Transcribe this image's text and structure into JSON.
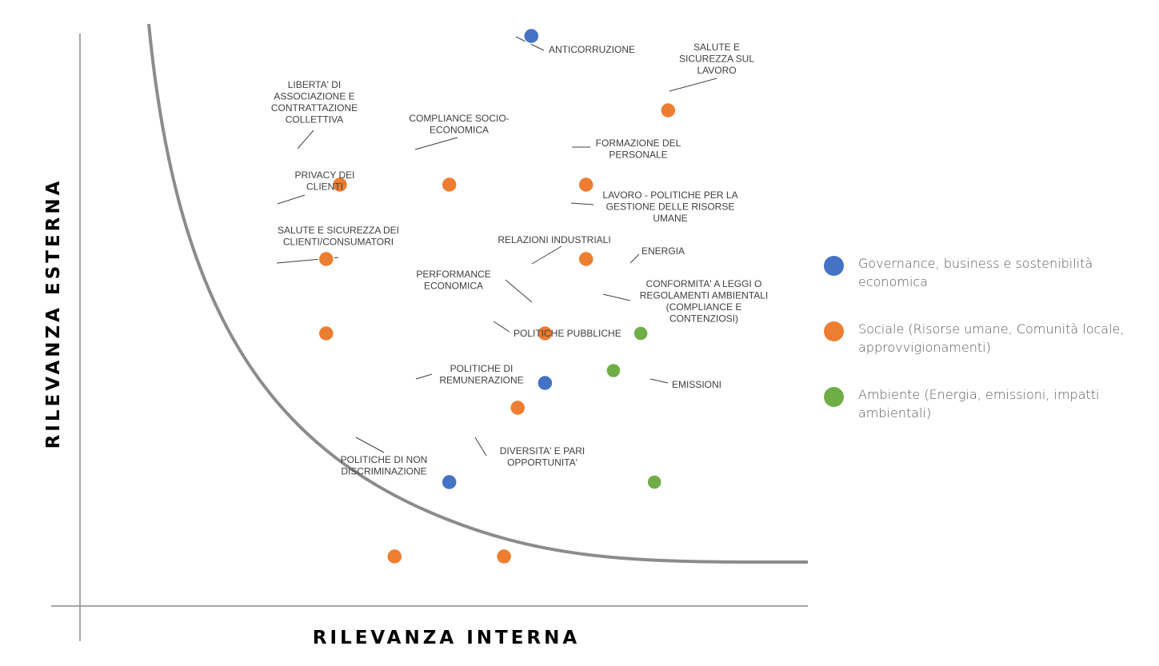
{
  "chart_data": {
    "type": "scatter",
    "xlabel": "RILEVANZA INTERNA",
    "ylabel": "RILEVANZA ESTERNA",
    "colors": {
      "governance": "#4472C4",
      "sociale": "#ED7D31",
      "ambiente": "#70AD47"
    },
    "legend": [
      {
        "key": "governance",
        "label": "Governance, business e sostenibilità economica"
      },
      {
        "key": "sociale",
        "label": "Sociale (Risorse umane, Comunità locale, approvvigionamenti)"
      },
      {
        "key": "ambiente",
        "label": "Ambiente (Energia, emissioni, impatti ambientali)"
      }
    ],
    "points": [
      {
        "label": "ANTICORRUZIONE",
        "category": "governance",
        "x": 3.3,
        "y": 4.6
      },
      {
        "label": "SALUTE E SICUREZZA SUL LAVORO",
        "category": "sociale",
        "x": 4.3,
        "y": 4.0
      },
      {
        "label": "LIBERTA' DI ASSOCIAZIONE E CONTRATTAZIONE COLLETTIVA",
        "category": "sociale",
        "x": 1.9,
        "y": 3.4
      },
      {
        "label": "COMPLIANCE SOCIO-ECONOMICA",
        "category": "sociale",
        "x": 2.7,
        "y": 3.4
      },
      {
        "label": "FORMAZIONE DEL PERSONALE",
        "category": "sociale",
        "x": 3.7,
        "y": 3.4
      },
      {
        "label": "PRIVACY DEI CLIENTI",
        "category": "sociale",
        "x": 1.8,
        "y": 2.8
      },
      {
        "label": "LAVORO - POLITICHE PER LA GESTIONE DELLE RISORSE UMANE",
        "category": "sociale",
        "x": 3.7,
        "y": 2.8
      },
      {
        "label": "SALUTE E SICUREZZA DEI CLIENTI/CONSUMATORI",
        "category": "sociale",
        "x": 1.8,
        "y": 2.2
      },
      {
        "label": "RELAZIONI INDUSTRIALI",
        "category": "sociale",
        "x": 3.4,
        "y": 2.2
      },
      {
        "label": "ENERGIA",
        "category": "ambiente",
        "x": 4.1,
        "y": 2.2
      },
      {
        "label": "PERFORMANCE ECONOMICA",
        "category": "governance",
        "x": 3.4,
        "y": 1.8
      },
      {
        "label": "CONFORMITA' A LEGGI O REGOLAMENTI AMBIENTALI (COMPLIANCE E CONTENZIOSI)",
        "category": "ambiente",
        "x": 3.9,
        "y": 1.9
      },
      {
        "label": "POLITICHE PUBBLICHE",
        "category": "sociale",
        "x": 3.2,
        "y": 1.6
      },
      {
        "label": "POLITICHE DI REMUNERAZIONE",
        "category": "governance",
        "x": 2.7,
        "y": 1.0
      },
      {
        "label": "EMISSIONI",
        "category": "ambiente",
        "x": 4.2,
        "y": 1.0
      },
      {
        "label": "POLITICHE DI NON DISCRIMINAZIONE",
        "category": "sociale",
        "x": 2.3,
        "y": 0.4
      },
      {
        "label": "DIVERSITA' E PARI OPPORTUNITA'",
        "category": "sociale",
        "x": 3.1,
        "y": 0.4
      }
    ]
  }
}
